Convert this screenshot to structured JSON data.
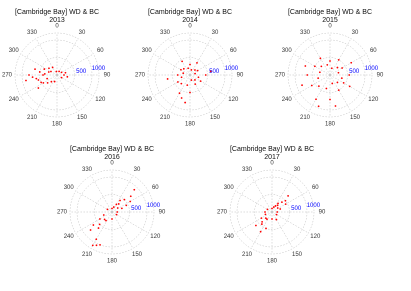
{
  "chart_data": [
    {
      "type": "scatter",
      "title": "[Cambridge Bay] WD & BC",
      "subtitle": "2013",
      "xlim": [
        0,
        360
      ],
      "xticks": [
        0,
        30,
        60,
        90,
        120,
        150,
        180,
        210,
        240,
        270,
        300,
        330
      ],
      "ylim": [
        0,
        1200
      ],
      "yticks": [
        500,
        1000
      ],
      "tick_label_color": "#0000ff",
      "color": "#ff0000",
      "grid": true,
      "x": [
        270,
        260,
        250,
        280,
        290,
        240,
        265,
        275,
        300,
        230,
        255,
        285,
        310,
        220,
        200,
        120,
        90,
        60,
        30,
        330,
        350,
        270,
        245,
        295,
        260,
        100,
        75,
        235
      ],
      "values": [
        400,
        600,
        300,
        500,
        250,
        450,
        700,
        350,
        200,
        350,
        550,
        650,
        300,
        250,
        200,
        150,
        200,
        150,
        120,
        250,
        100,
        800,
        500,
        400,
        900,
        300,
        250,
        650
      ]
    },
    {
      "type": "scatter",
      "title": "[Cambridge Bay] WD & BC",
      "subtitle": "2014",
      "xlim": [
        0,
        360
      ],
      "xticks": [
        0,
        30,
        60,
        90,
        120,
        150,
        180,
        210,
        240,
        270,
        300,
        330
      ],
      "ylim": [
        0,
        1200
      ],
      "yticks": [
        500,
        1000
      ],
      "tick_label_color": "#0000ff",
      "color": "#ff0000",
      "grid": true,
      "x": [
        0,
        30,
        60,
        90,
        120,
        150,
        180,
        210,
        240,
        270,
        300,
        330,
        15,
        45,
        75,
        105,
        135,
        165,
        195,
        225,
        255,
        285,
        315,
        345,
        200,
        260,
        80,
        190
      ],
      "values": [
        300,
        400,
        250,
        450,
        350,
        300,
        500,
        600,
        400,
        350,
        300,
        450,
        150,
        200,
        150,
        250,
        200,
        150,
        300,
        350,
        250,
        200,
        250,
        200,
        700,
        650,
        600,
        800
      ]
    },
    {
      "type": "scatter",
      "title": "[Cambridge Bay] WD & BC",
      "subtitle": "2015",
      "xlim": [
        0,
        360
      ],
      "xticks": [
        0,
        30,
        60,
        90,
        120,
        150,
        180,
        210,
        240,
        270,
        300,
        330
      ],
      "ylim": [
        0,
        1200
      ],
      "yticks": [
        500,
        1000
      ],
      "tick_label_color": "#0000ff",
      "color": "#ff0000",
      "grid": true,
      "x": [
        0,
        30,
        60,
        90,
        120,
        150,
        180,
        210,
        240,
        270,
        300,
        330,
        15,
        45,
        75,
        105,
        135,
        165,
        195,
        225,
        255,
        285,
        315,
        345,
        200,
        250,
        290,
        170,
        60,
        120
      ],
      "values": [
        400,
        500,
        400,
        550,
        450,
        500,
        700,
        800,
        600,
        650,
        500,
        550,
        200,
        300,
        250,
        350,
        300,
        250,
        400,
        450,
        350,
        300,
        350,
        300,
        950,
        850,
        750,
        900,
        700,
        650
      ]
    },
    {
      "type": "scatter",
      "title": "[Cambridge Bay] WD & BC",
      "subtitle": "2016",
      "xlim": [
        0,
        360
      ],
      "xticks": [
        0,
        30,
        60,
        90,
        120,
        150,
        180,
        210,
        240,
        270,
        300,
        330
      ],
      "ylim": [
        0,
        1200
      ],
      "yticks": [
        500,
        1000
      ],
      "tick_label_color": "#0000ff",
      "color": "#ff0000",
      "grid": true,
      "x": [
        45,
        50,
        40,
        60,
        225,
        230,
        220,
        210,
        200,
        35,
        55,
        240,
        215,
        30,
        70,
        250,
        45,
        225,
        20,
        90,
        180,
        300,
        0,
        120,
        210,
        205,
        235,
        65
      ],
      "values": [
        500,
        700,
        300,
        600,
        500,
        800,
        600,
        900,
        1000,
        400,
        200,
        400,
        300,
        250,
        300,
        250,
        900,
        300,
        150,
        150,
        200,
        150,
        100,
        150,
        1100,
        1050,
        650,
        450
      ]
    },
    {
      "type": "scatter",
      "title": "[Cambridge Bay] WD & BC",
      "subtitle": "2017",
      "xlim": [
        0,
        360
      ],
      "xticks": [
        0,
        30,
        60,
        90,
        120,
        150,
        180,
        210,
        240,
        270,
        300,
        330
      ],
      "ylim": [
        0,
        1200
      ],
      "yticks": [
        500,
        1000
      ],
      "tick_label_color": "#0000ff",
      "color": "#ff0000",
      "grid": true,
      "x": [
        45,
        50,
        40,
        60,
        225,
        230,
        220,
        210,
        200,
        35,
        55,
        240,
        215,
        30,
        70,
        250,
        45,
        225,
        20,
        90,
        180,
        300,
        0,
        120,
        270,
        150
      ],
      "values": [
        400,
        500,
        250,
        450,
        400,
        600,
        450,
        650,
        500,
        300,
        200,
        350,
        250,
        200,
        250,
        200,
        650,
        250,
        150,
        150,
        200,
        150,
        100,
        150,
        200,
        250
      ]
    }
  ]
}
